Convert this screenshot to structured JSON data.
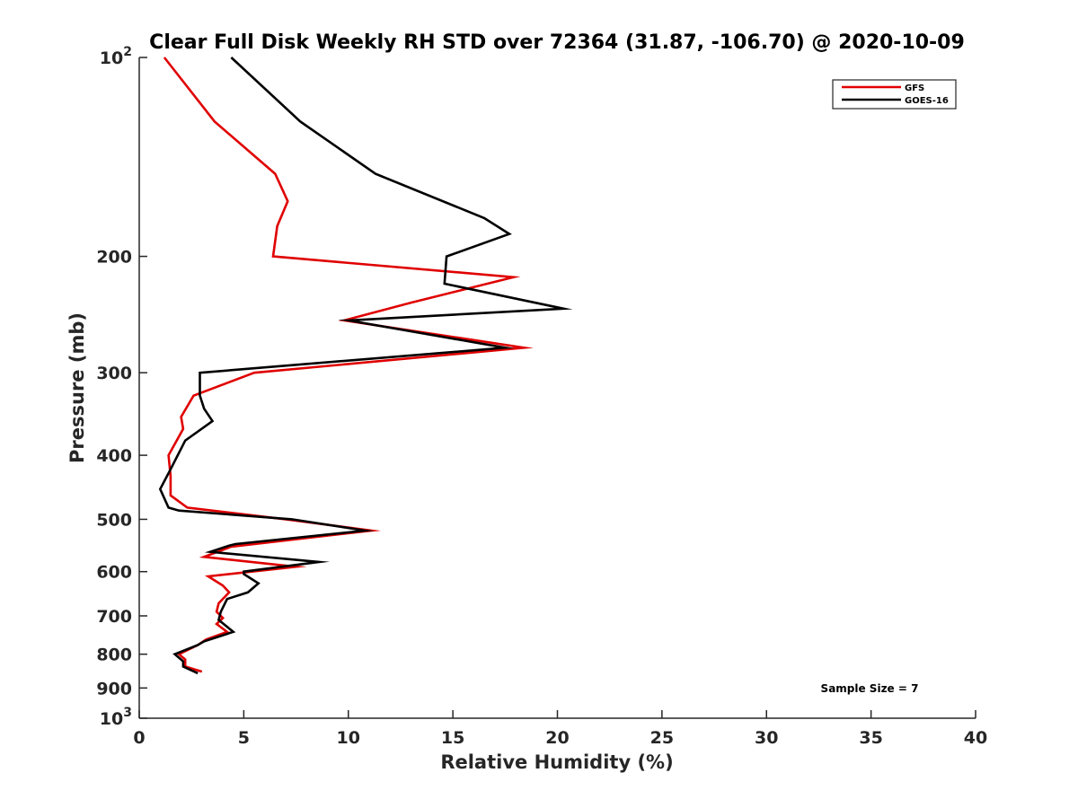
{
  "chart_data": {
    "type": "line",
    "title": "Clear Full Disk Weekly RH STD over 72364 (31.87, -106.70) @ 2020-10-09",
    "xlabel": "Relative Humidity (%)",
    "ylabel": "Pressure (mb)",
    "xlim": [
      0,
      40
    ],
    "ylim": [
      100,
      1000
    ],
    "yscale": "log",
    "y_reversed": true,
    "grid": false,
    "legend_position": "top-right",
    "xticks": [
      0,
      5,
      10,
      15,
      20,
      25,
      30,
      35,
      40
    ],
    "xtick_labels": [
      "0",
      "5",
      "10",
      "15",
      "20",
      "25",
      "30",
      "35",
      "40"
    ],
    "yticks": [
      100,
      200,
      300,
      400,
      500,
      600,
      700,
      800,
      900,
      1000
    ],
    "ytick_labels": [
      {
        "base": "10",
        "exp": "2"
      },
      {
        "base": "200",
        "exp": ""
      },
      {
        "base": "300",
        "exp": ""
      },
      {
        "base": "400",
        "exp": ""
      },
      {
        "base": "500",
        "exp": ""
      },
      {
        "base": "600",
        "exp": ""
      },
      {
        "base": "700",
        "exp": ""
      },
      {
        "base": "800",
        "exp": ""
      },
      {
        "base": "900",
        "exp": ""
      },
      {
        "base": "10",
        "exp": "3"
      }
    ],
    "annotation": "Sample Size = 7",
    "series": [
      {
        "name": "GFS",
        "color": "#e00000",
        "points": [
          {
            "x": 1.2,
            "p": 100
          },
          {
            "x": 3.6,
            "p": 125
          },
          {
            "x": 6.5,
            "p": 150
          },
          {
            "x": 7.1,
            "p": 165
          },
          {
            "x": 6.6,
            "p": 180
          },
          {
            "x": 6.4,
            "p": 200
          },
          {
            "x": 17.9,
            "p": 215
          },
          {
            "x": 13.0,
            "p": 235
          },
          {
            "x": 9.8,
            "p": 250
          },
          {
            "x": 18.4,
            "p": 275
          },
          {
            "x": 5.5,
            "p": 300
          },
          {
            "x": 2.6,
            "p": 325
          },
          {
            "x": 2.0,
            "p": 350
          },
          {
            "x": 2.1,
            "p": 365
          },
          {
            "x": 1.4,
            "p": 400
          },
          {
            "x": 1.5,
            "p": 430
          },
          {
            "x": 1.5,
            "p": 460
          },
          {
            "x": 2.3,
            "p": 480
          },
          {
            "x": 7.0,
            "p": 500
          },
          {
            "x": 11.1,
            "p": 520
          },
          {
            "x": 4.4,
            "p": 550
          },
          {
            "x": 3.1,
            "p": 570
          },
          {
            "x": 7.5,
            "p": 590
          },
          {
            "x": 3.3,
            "p": 610
          },
          {
            "x": 4.0,
            "p": 630
          },
          {
            "x": 4.3,
            "p": 645
          },
          {
            "x": 3.8,
            "p": 670
          },
          {
            "x": 3.7,
            "p": 690
          },
          {
            "x": 4.0,
            "p": 705
          },
          {
            "x": 3.7,
            "p": 720
          },
          {
            "x": 4.2,
            "p": 740
          },
          {
            "x": 3.2,
            "p": 760
          },
          {
            "x": 2.8,
            "p": 775
          },
          {
            "x": 1.9,
            "p": 800
          },
          {
            "x": 2.2,
            "p": 815
          },
          {
            "x": 2.2,
            "p": 835
          },
          {
            "x": 3.0,
            "p": 850
          }
        ]
      },
      {
        "name": "GOES-16",
        "color": "#000000",
        "points": [
          {
            "x": 4.4,
            "p": 100
          },
          {
            "x": 7.7,
            "p": 125
          },
          {
            "x": 11.3,
            "p": 150
          },
          {
            "x": 16.5,
            "p": 175
          },
          {
            "x": 17.7,
            "p": 185
          },
          {
            "x": 14.7,
            "p": 200
          },
          {
            "x": 14.6,
            "p": 220
          },
          {
            "x": 20.3,
            "p": 240
          },
          {
            "x": 10.0,
            "p": 250
          },
          {
            "x": 17.5,
            "p": 275
          },
          {
            "x": 2.9,
            "p": 300
          },
          {
            "x": 2.9,
            "p": 325
          },
          {
            "x": 3.1,
            "p": 340
          },
          {
            "x": 3.5,
            "p": 355
          },
          {
            "x": 2.2,
            "p": 380
          },
          {
            "x": 1.5,
            "p": 420
          },
          {
            "x": 1.0,
            "p": 450
          },
          {
            "x": 1.4,
            "p": 480
          },
          {
            "x": 1.9,
            "p": 485
          },
          {
            "x": 7.3,
            "p": 500
          },
          {
            "x": 10.8,
            "p": 520
          },
          {
            "x": 4.6,
            "p": 545
          },
          {
            "x": 4.3,
            "p": 548
          },
          {
            "x": 3.4,
            "p": 560
          },
          {
            "x": 8.6,
            "p": 580
          },
          {
            "x": 5.0,
            "p": 600
          },
          {
            "x": 5.0,
            "p": 605
          },
          {
            "x": 5.7,
            "p": 625
          },
          {
            "x": 5.2,
            "p": 645
          },
          {
            "x": 4.2,
            "p": 660
          },
          {
            "x": 3.9,
            "p": 690
          },
          {
            "x": 3.8,
            "p": 710
          },
          {
            "x": 4.5,
            "p": 740
          },
          {
            "x": 3.1,
            "p": 765
          },
          {
            "x": 2.8,
            "p": 775
          },
          {
            "x": 1.7,
            "p": 800
          },
          {
            "x": 2.1,
            "p": 820
          },
          {
            "x": 2.1,
            "p": 835
          },
          {
            "x": 2.8,
            "p": 855
          }
        ]
      }
    ]
  }
}
